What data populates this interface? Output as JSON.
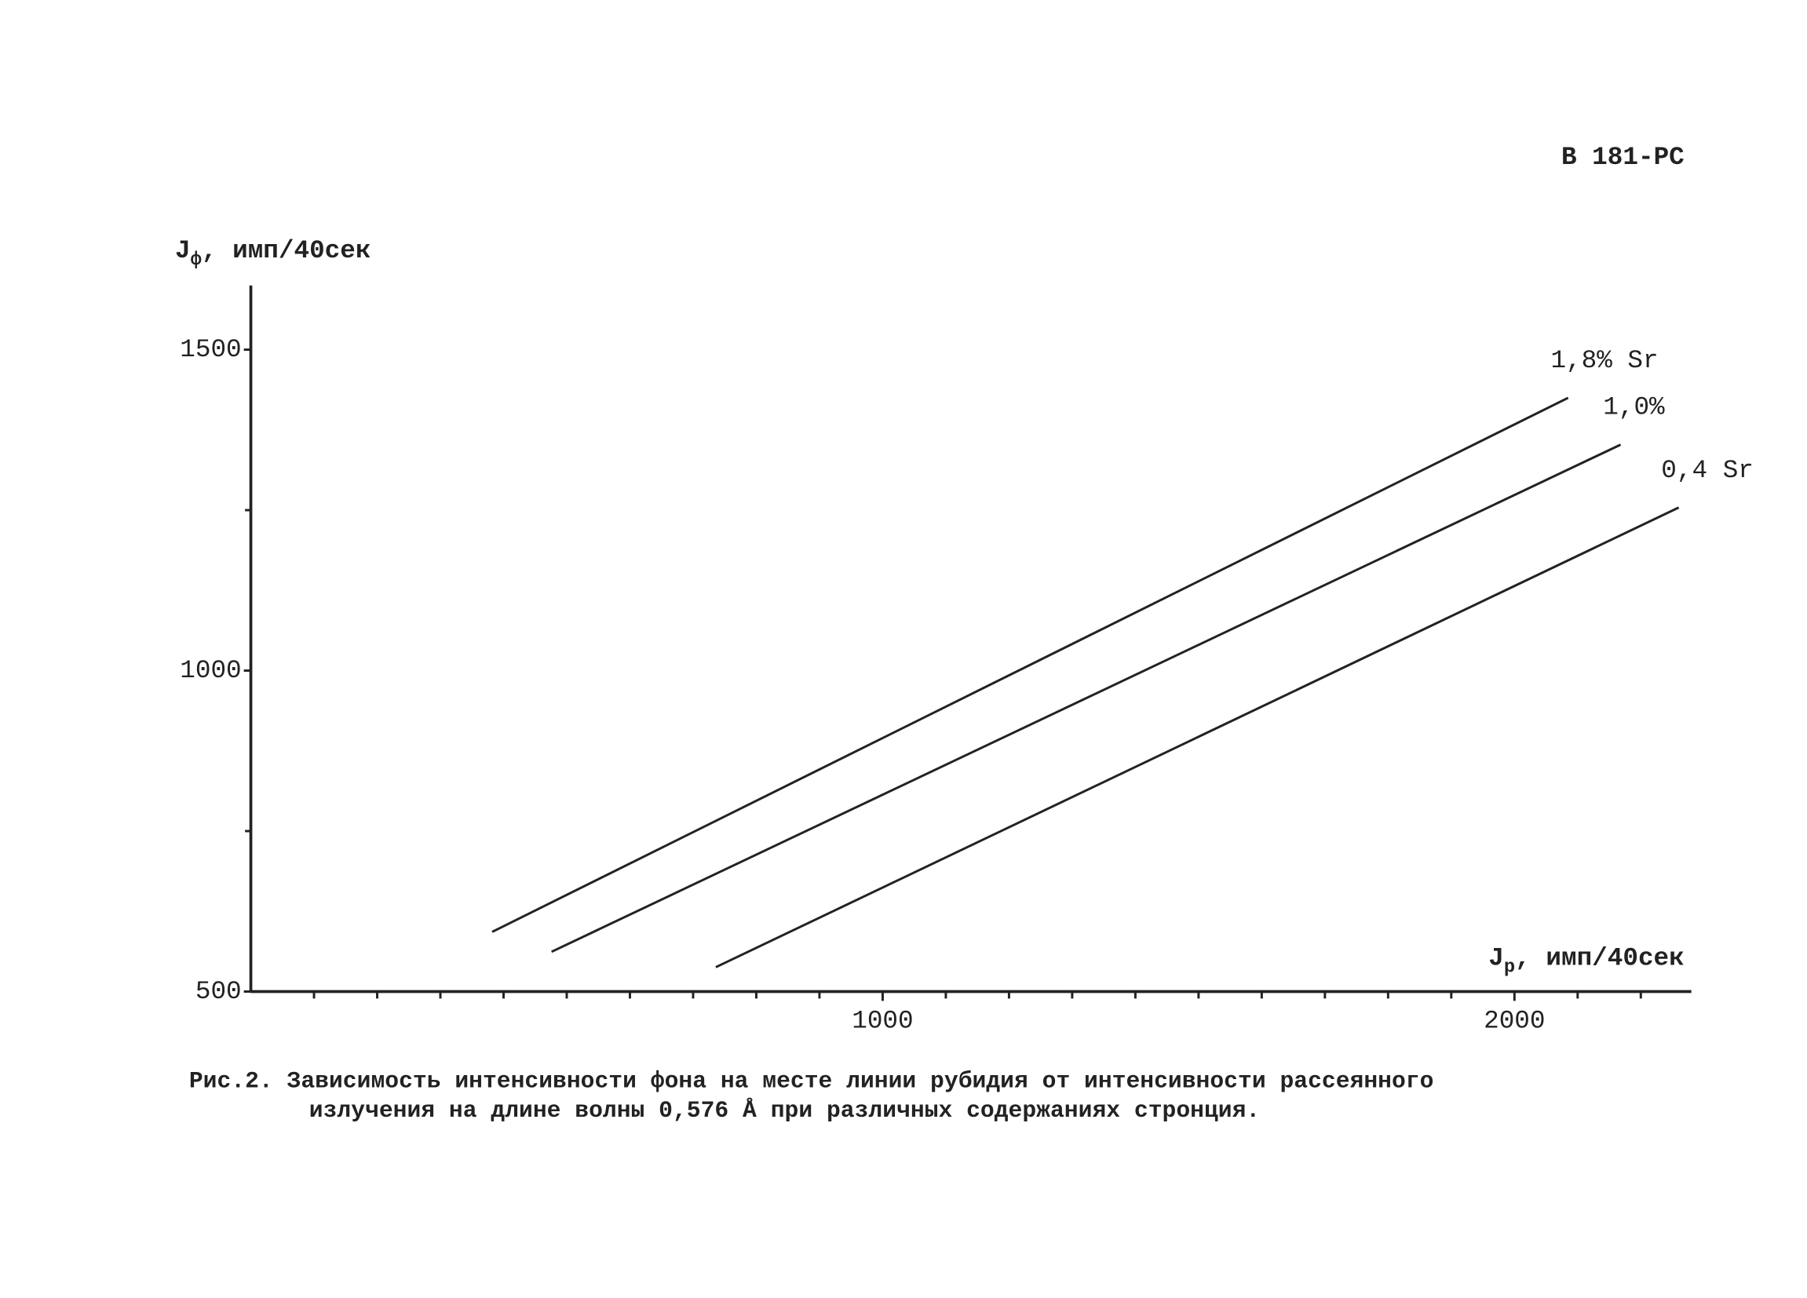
{
  "chart_data": {
    "type": "line",
    "code": "В 181-РС",
    "y_label": "J",
    "y_label_sub": "ф",
    "y_label_unit": ", имп/40сек",
    "x_label": "J",
    "x_label_sub": "р",
    "x_label_unit": ", имп/40сек",
    "caption_line1": "Рис.2. Зависимость интенсивности фона на месте линии рубидия от интенсивности рассеянного",
    "caption_line2": "излучения на длине волны 0,576 Å при различных содержаниях стронция.",
    "xlim": [
      0,
      2280
    ],
    "ylim": [
      500,
      1600
    ],
    "xticks": [
      1000,
      2000
    ],
    "xticks_minor": [
      100,
      200,
      300,
      400,
      500,
      600,
      700,
      800,
      900,
      1100,
      1200,
      1300,
      1400,
      1500,
      1600,
      1700,
      1800,
      1900,
      2100,
      2200
    ],
    "yticks": [
      500,
      1000,
      1500
    ],
    "yticks_minor": [
      750,
      1250
    ],
    "series": [
      {
        "name": "1,8% Sr",
        "color": "#222222",
        "x": [
          382,
          2085
        ],
        "values": [
          593,
          1425
        ]
      },
      {
        "name": "1,0%",
        "color": "#222222",
        "x": [
          476,
          2168
        ],
        "values": [
          562,
          1352
        ]
      },
      {
        "name": "0,4 Sr",
        "color": "#222222",
        "x": [
          736,
          2260
        ],
        "values": [
          538,
          1254
        ]
      }
    ]
  }
}
